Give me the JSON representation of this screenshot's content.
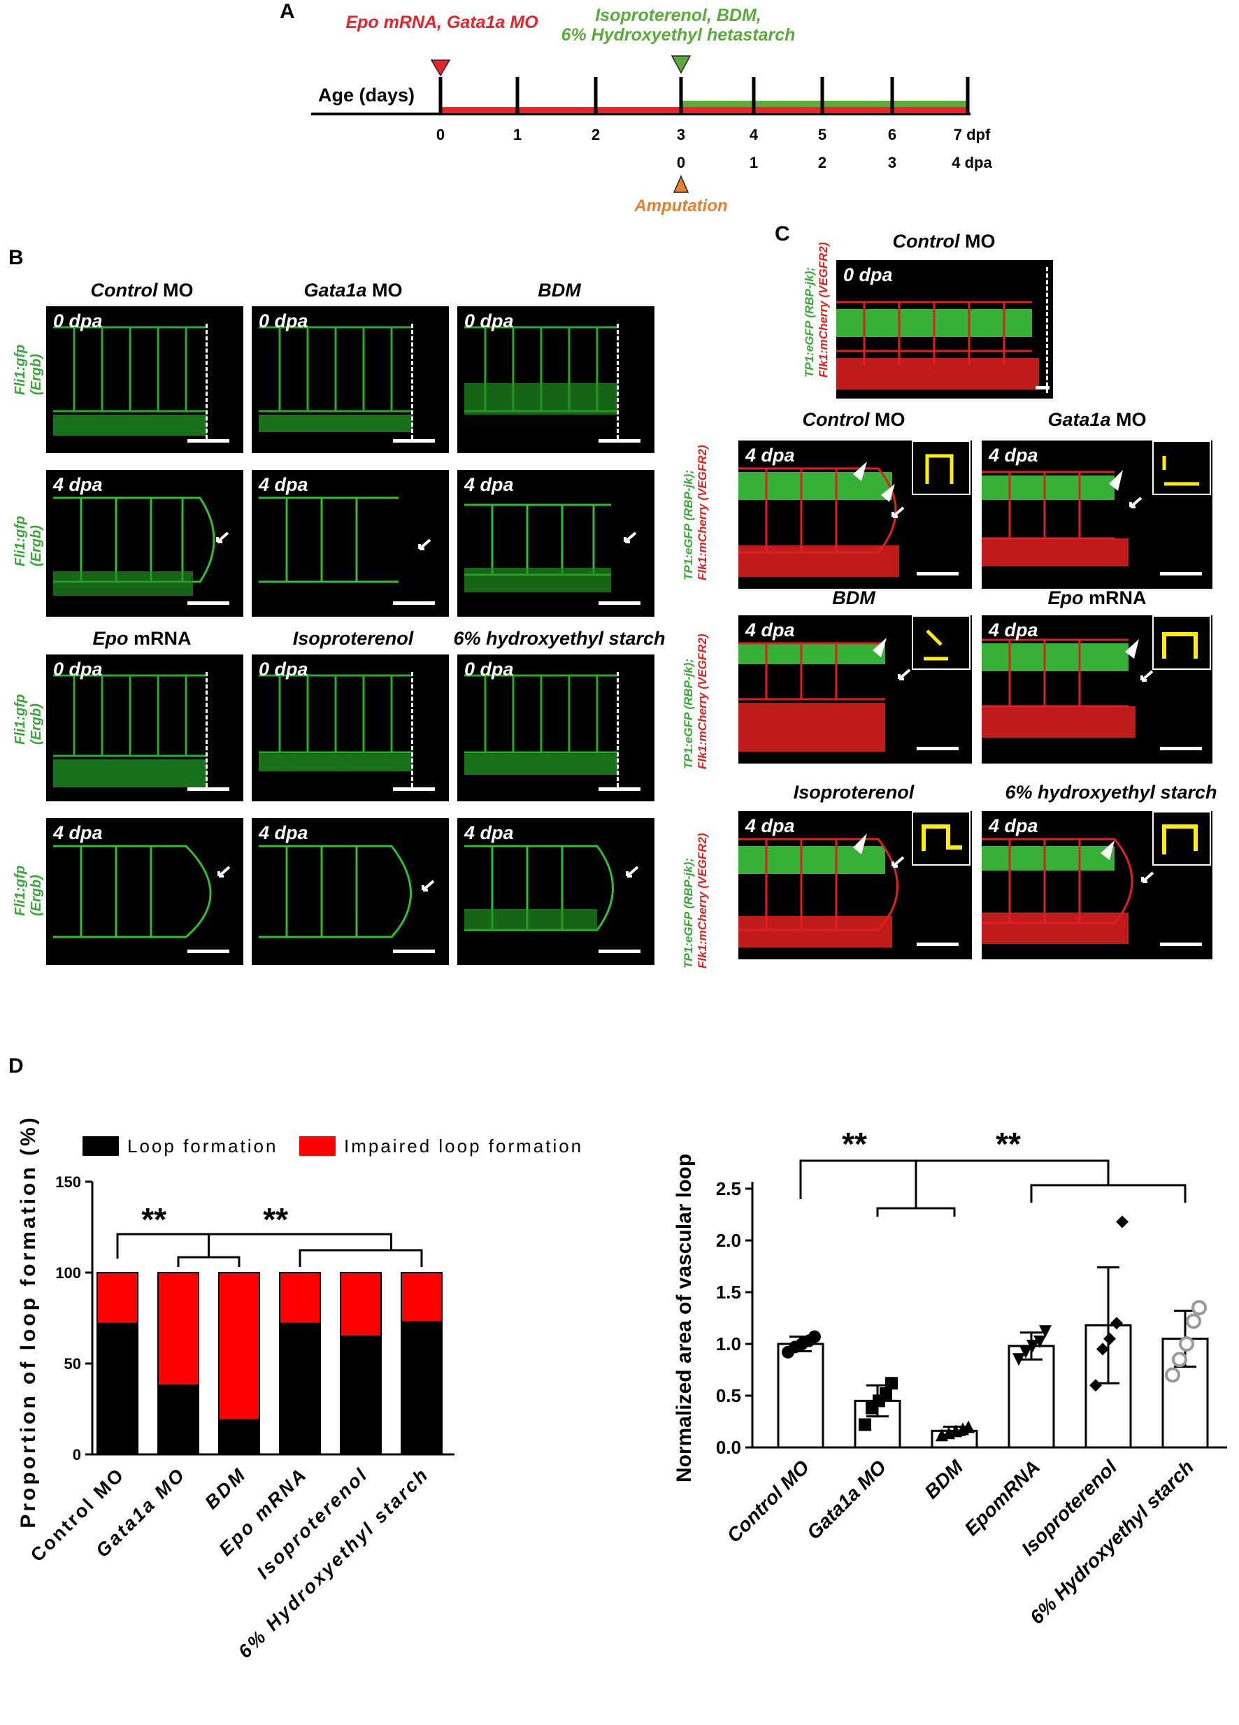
{
  "panels": {
    "A": "A",
    "B": "B",
    "C": "C",
    "D": "D"
  },
  "timeline": {
    "axis_label": "Age (days)",
    "treatment_red": "Epo mRNA, Gata1a MO",
    "treatment_green_line1": "Isoproterenol, BDM,",
    "treatment_green_line2": "6% Hydroxyethyl hetastarch",
    "dpf_ticks": [
      "0",
      "1",
      "2",
      "3",
      "4",
      "5",
      "6",
      "7 dpf"
    ],
    "dpa_ticks": [
      "0",
      "1",
      "2",
      "3",
      "4 dpa"
    ],
    "amputation_label": "Amputation",
    "colors": {
      "red": "#e8242a",
      "green": "#5aaa3c",
      "orange": "#e87f2b"
    }
  },
  "panel_b": {
    "ylabel_line1": "Fli1:gfp",
    "ylabel_line2": "(Ergb)",
    "groups_top": [
      {
        "title_italic": "Control",
        "title_rest": " MO"
      },
      {
        "title_italic": "Gata1a",
        "title_rest": " MO"
      },
      {
        "title_italic": "BDM",
        "title_rest": ""
      }
    ],
    "groups_bottom": [
      {
        "title_italic": "Epo",
        "title_rest": " mRNA"
      },
      {
        "title_italic": "Isoproterenol",
        "title_rest": ""
      },
      {
        "title_italic": "6% hydroxyethyl starch",
        "title_rest": ""
      }
    ],
    "dpa0": "0 dpa",
    "dpa4": "4 dpa"
  },
  "panel_c": {
    "ylabel_green": "TP1:eGFP (RBP-jk);",
    "ylabel_red": "Flk1:mCherry (VEGFR2)",
    "top_title_italic": "Control",
    "top_title_rest": " MO",
    "top_dpa": "0 dpa",
    "groups": [
      {
        "title_italic": "Control",
        "title_rest": " MO"
      },
      {
        "title_italic": "Gata1a",
        "title_rest": " MO"
      },
      {
        "title_italic": "BDM",
        "title_rest": ""
      },
      {
        "title_italic": "Epo",
        "title_rest": " mRNA"
      },
      {
        "title_italic": "Isoproterenol",
        "title_rest": ""
      },
      {
        "title_italic": "6% hydroxyethyl starch",
        "title_rest": ""
      }
    ],
    "dpa4": "4 dpa"
  },
  "chart_data": [
    {
      "type": "bar",
      "stacked": true,
      "ylabel": "Proportion of loop formation (%)",
      "ylim": [
        0,
        150
      ],
      "yticks": [
        "0",
        "50",
        "100",
        "150"
      ],
      "categories": [
        "Control MO",
        "Gata1a MO",
        "BDM",
        "Epo mRNA",
        "Isoproterenol",
        "6% Hydroxyethyl starch"
      ],
      "series": [
        {
          "name": "Loop formation",
          "color": "#000000",
          "values": [
            72,
            38,
            19,
            72,
            65,
            73
          ]
        },
        {
          "name": "Impaired loop formation",
          "color": "#ff0000",
          "values": [
            28,
            62,
            81,
            28,
            35,
            27
          ]
        }
      ],
      "legend": "top",
      "significance": [
        "**",
        "**"
      ]
    },
    {
      "type": "bar",
      "ylabel": "Normalized area of vascular loop",
      "ylim": [
        0,
        2.5
      ],
      "yticks": [
        "0.0",
        "0.5",
        "1.0",
        "1.5",
        "2.0",
        "2.5"
      ],
      "categories": [
        "Control MO",
        "Gata1a MO",
        "BDM",
        "EpomRNA",
        "Isoproterenol",
        "6% Hydroxyethyl starch"
      ],
      "values": [
        1.0,
        0.45,
        0.16,
        0.98,
        1.18,
        1.05
      ],
      "errors": [
        0.07,
        0.15,
        0.04,
        0.13,
        0.56,
        0.27
      ],
      "points": [
        [
          0.92,
          0.97,
          1.0,
          1.03,
          1.07
        ],
        [
          0.22,
          0.38,
          0.45,
          0.52,
          0.62
        ],
        [
          0.12,
          0.14,
          0.16,
          0.18,
          0.2
        ],
        [
          0.85,
          0.92,
          0.98,
          1.02,
          1.12
        ],
        [
          0.6,
          0.95,
          1.05,
          1.2,
          2.18
        ],
        [
          0.7,
          0.85,
          1.0,
          1.22,
          1.35
        ]
      ],
      "markers": [
        "circle",
        "square",
        "triangle-up",
        "triangle-down",
        "diamond",
        "open-circle"
      ],
      "significance": [
        "**",
        "**"
      ]
    }
  ]
}
